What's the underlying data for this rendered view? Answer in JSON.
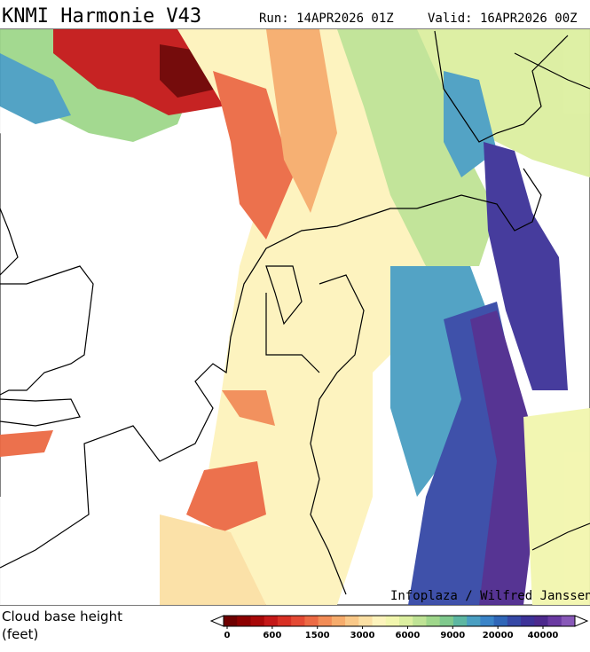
{
  "header": {
    "title": "KNMI Harmonie V43",
    "run": "Run: 14APR2026 01Z",
    "valid": "Valid: 16APR2026 00Z"
  },
  "credit": "Infoplaza / Wilfred Janssen",
  "legend": {
    "title": "Cloud base height",
    "unit": "(feet)",
    "colors": [
      "#6e0000",
      "#8c0000",
      "#a80808",
      "#c41818",
      "#d83024",
      "#e44a34",
      "#ec6a44",
      "#f28c56",
      "#f6ac6c",
      "#f9c888",
      "#fbe0a4",
      "#fdf3bc",
      "#f2f6ae",
      "#dcefa0",
      "#bfe395",
      "#9fd78b",
      "#7fc98d",
      "#5db7a2",
      "#4a9fc2",
      "#3a84c8",
      "#2f66b8",
      "#3548a6",
      "#3d3298",
      "#4d2a8e",
      "#6a3aa2",
      "#8858b8"
    ],
    "ticks": [
      0,
      600,
      1500,
      3000,
      6000,
      9000,
      20000,
      40000
    ]
  }
}
